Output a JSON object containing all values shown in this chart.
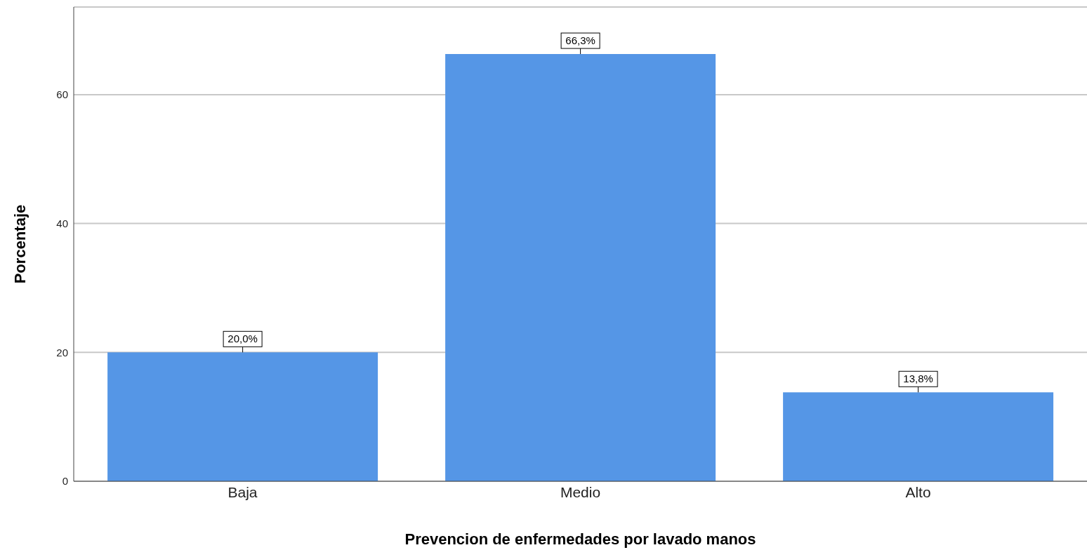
{
  "chart_data": {
    "type": "bar",
    "xlabel": "Prevencion de enfermedades por lavado manos",
    "ylabel": "Porcentaje",
    "categories": [
      "Baja",
      "Medio",
      "Alto"
    ],
    "values": [
      20.0,
      66.3,
      13.8
    ],
    "value_labels": [
      "20,0%",
      "66,3%",
      "13,8%"
    ],
    "color": "#5596e6",
    "ylim": [
      0,
      73.6
    ],
    "yticks": [
      0,
      20,
      40,
      60
    ],
    "grid": "y"
  }
}
